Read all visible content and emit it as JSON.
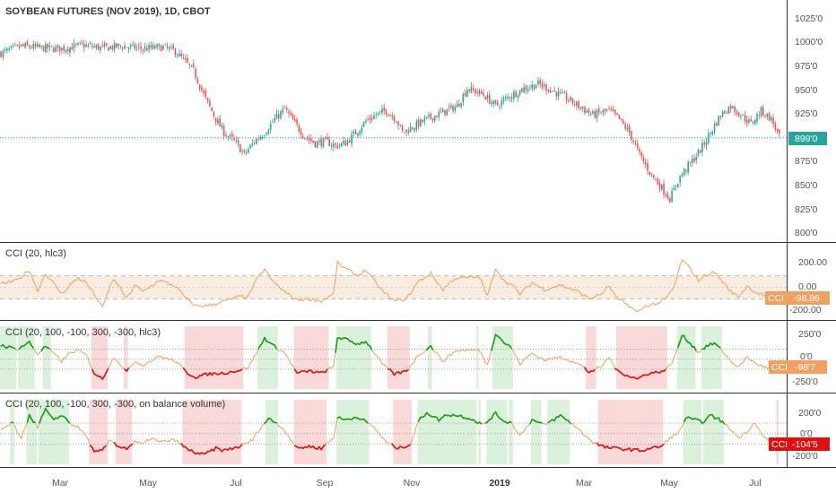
{
  "colors": {
    "up": "#26a69a",
    "down": "#ef5350",
    "cci_line": "#f0a060",
    "cci_band": "#f5e6d3",
    "cci_above": "#1a9b1a",
    "cci_below": "#e01010",
    "cci_above_bg": "#d7efd7",
    "cci_below_bg": "#f8d5d5",
    "last_price": "#26a69a",
    "tag_orange": "#f0a060",
    "tag_red": "#e01010",
    "grid_dots": "#9aa0a6"
  },
  "chart_data": [
    {
      "type": "candlestick",
      "title": "SOYBEAN FUTURES (NOV 2019), 1D, CBOT",
      "y_ticks": [
        "1025'0",
        "1000'0",
        "975'0",
        "950'0",
        "925'0",
        "900'0",
        "875'0",
        "850'0",
        "825'0",
        "800'0"
      ],
      "ylim": [
        793,
        1035
      ],
      "last_price_label": "899'0",
      "last_price": 899,
      "x_labels": [
        "Mar",
        "May",
        "Jul",
        "Sep",
        "Nov",
        "2019",
        "Mar",
        "May",
        "Jul"
      ],
      "close_path": [
        [
          0,
          995
        ],
        [
          10,
          1003
        ],
        [
          20,
          1001
        ],
        [
          30,
          1000
        ],
        [
          40,
          1004
        ],
        [
          50,
          1001
        ],
        [
          60,
          1003
        ],
        [
          70,
          1000
        ],
        [
          80,
          1002
        ],
        [
          86,
          997
        ],
        [
          95,
          975
        ],
        [
          100,
          948
        ],
        [
          106,
          920
        ],
        [
          110,
          905
        ],
        [
          116,
          893
        ],
        [
          120,
          880
        ],
        [
          125,
          895
        ],
        [
          130,
          905
        ],
        [
          135,
          920
        ],
        [
          140,
          932
        ],
        [
          145,
          915
        ],
        [
          150,
          900
        ],
        [
          155,
          893
        ],
        [
          160,
          895
        ],
        [
          165,
          890
        ],
        [
          170,
          893
        ],
        [
          175,
          905
        ],
        [
          180,
          918
        ],
        [
          185,
          925
        ],
        [
          190,
          930
        ],
        [
          195,
          920
        ],
        [
          198,
          905
        ],
        [
          202,
          910
        ],
        [
          210,
          920
        ],
        [
          218,
          928
        ],
        [
          225,
          935
        ],
        [
          230,
          955
        ],
        [
          238,
          948
        ],
        [
          244,
          935
        ],
        [
          250,
          945
        ],
        [
          258,
          955
        ],
        [
          265,
          960
        ],
        [
          270,
          955
        ],
        [
          278,
          945
        ],
        [
          285,
          935
        ],
        [
          292,
          925
        ],
        [
          300,
          930
        ],
        [
          305,
          920
        ],
        [
          310,
          905
        ],
        [
          315,
          880
        ],
        [
          320,
          860
        ],
        [
          325,
          845
        ],
        [
          330,
          830
        ],
        [
          335,
          855
        ],
        [
          340,
          870
        ],
        [
          345,
          885
        ],
        [
          350,
          905
        ],
        [
          355,
          925
        ],
        [
          360,
          935
        ],
        [
          365,
          925
        ],
        [
          370,
          915
        ],
        [
          375,
          930
        ],
        [
          380,
          920
        ],
        [
          384,
          900
        ]
      ],
      "n_bars": 385
    },
    {
      "type": "line",
      "title": "CCI (20, hlc3)",
      "y_ticks": [
        "200.00",
        "0.00",
        "-200.00"
      ],
      "ylim": [
        -260,
        330
      ],
      "band": [
        -100,
        100
      ],
      "last_value_label": "-98.86",
      "last_value": -98.86,
      "path": [
        [
          0,
          30
        ],
        [
          8,
          60
        ],
        [
          14,
          150
        ],
        [
          18,
          -30
        ],
        [
          22,
          120
        ],
        [
          30,
          -60
        ],
        [
          34,
          20
        ],
        [
          38,
          80
        ],
        [
          42,
          40
        ],
        [
          46,
          -60
        ],
        [
          50,
          -180
        ],
        [
          54,
          20
        ],
        [
          56,
          70
        ],
        [
          62,
          -100
        ],
        [
          66,
          20
        ],
        [
          70,
          -40
        ],
        [
          78,
          60
        ],
        [
          86,
          10
        ],
        [
          92,
          -110
        ],
        [
          96,
          -160
        ],
        [
          102,
          -160
        ],
        [
          110,
          -120
        ],
        [
          118,
          -80
        ],
        [
          122,
          -80
        ],
        [
          126,
          60
        ],
        [
          130,
          160
        ],
        [
          134,
          50
        ],
        [
          140,
          -40
        ],
        [
          146,
          -110
        ],
        [
          152,
          -100
        ],
        [
          158,
          -120
        ],
        [
          164,
          -60
        ],
        [
          166,
          210
        ],
        [
          170,
          160
        ],
        [
          176,
          100
        ],
        [
          180,
          150
        ],
        [
          184,
          60
        ],
        [
          188,
          -30
        ],
        [
          194,
          -120
        ],
        [
          200,
          -100
        ],
        [
          206,
          50
        ],
        [
          212,
          120
        ],
        [
          218,
          -20
        ],
        [
          224,
          80
        ],
        [
          228,
          80
        ],
        [
          236,
          90
        ],
        [
          240,
          -80
        ],
        [
          244,
          170
        ],
        [
          248,
          60
        ],
        [
          252,
          20
        ],
        [
          256,
          -60
        ],
        [
          262,
          40
        ],
        [
          268,
          -20
        ],
        [
          276,
          20
        ],
        [
          282,
          -20
        ],
        [
          286,
          -50
        ],
        [
          290,
          -100
        ],
        [
          296,
          -60
        ],
        [
          300,
          10
        ],
        [
          304,
          -100
        ],
        [
          310,
          -160
        ],
        [
          314,
          -220
        ],
        [
          318,
          -160
        ],
        [
          324,
          -140
        ],
        [
          328,
          -100
        ],
        [
          332,
          0
        ],
        [
          336,
          240
        ],
        [
          340,
          160
        ],
        [
          344,
          60
        ],
        [
          348,
          110
        ],
        [
          352,
          130
        ],
        [
          356,
          50
        ],
        [
          360,
          -40
        ],
        [
          364,
          -80
        ],
        [
          368,
          10
        ],
        [
          372,
          -40
        ],
        [
          378,
          -80
        ],
        [
          384,
          -99
        ]
      ]
    },
    {
      "type": "line",
      "title": "CCI (20, 100, -100, 300, -300, hlc3)",
      "y_ticks": [
        "250'0",
        "0'0",
        "-250'0"
      ],
      "ylim": [
        -300,
        330
      ],
      "levels": [
        100,
        -100
      ],
      "last_value_label": "-98'7",
      "last_value": -98.7,
      "path": [
        [
          0,
          140
        ],
        [
          8,
          100
        ],
        [
          14,
          170
        ],
        [
          18,
          50
        ],
        [
          22,
          130
        ],
        [
          30,
          -20
        ],
        [
          34,
          60
        ],
        [
          38,
          90
        ],
        [
          42,
          40
        ],
        [
          46,
          -140
        ],
        [
          50,
          -200
        ],
        [
          54,
          -40
        ],
        [
          56,
          20
        ],
        [
          62,
          -130
        ],
        [
          66,
          -20
        ],
        [
          70,
          -60
        ],
        [
          78,
          30
        ],
        [
          86,
          -20
        ],
        [
          92,
          -140
        ],
        [
          96,
          -180
        ],
        [
          102,
          -150
        ],
        [
          110,
          -140
        ],
        [
          118,
          -110
        ],
        [
          122,
          -80
        ],
        [
          126,
          60
        ],
        [
          130,
          210
        ],
        [
          134,
          140
        ],
        [
          140,
          60
        ],
        [
          146,
          -140
        ],
        [
          152,
          -120
        ],
        [
          158,
          -140
        ],
        [
          164,
          -80
        ],
        [
          166,
          220
        ],
        [
          170,
          200
        ],
        [
          176,
          150
        ],
        [
          180,
          180
        ],
        [
          184,
          70
        ],
        [
          188,
          -50
        ],
        [
          194,
          -150
        ],
        [
          200,
          -120
        ],
        [
          206,
          40
        ],
        [
          212,
          130
        ],
        [
          218,
          -20
        ],
        [
          224,
          80
        ],
        [
          228,
          90
        ],
        [
          236,
          90
        ],
        [
          240,
          -60
        ],
        [
          244,
          260
        ],
        [
          248,
          170
        ],
        [
          252,
          110
        ],
        [
          256,
          -50
        ],
        [
          262,
          60
        ],
        [
          268,
          -10
        ],
        [
          276,
          20
        ],
        [
          282,
          -20
        ],
        [
          286,
          -60
        ],
        [
          290,
          -130
        ],
        [
          296,
          -80
        ],
        [
          300,
          20
        ],
        [
          304,
          -120
        ],
        [
          310,
          -170
        ],
        [
          314,
          -200
        ],
        [
          318,
          -150
        ],
        [
          324,
          -130
        ],
        [
          328,
          -110
        ],
        [
          332,
          0
        ],
        [
          336,
          240
        ],
        [
          340,
          160
        ],
        [
          344,
          70
        ],
        [
          348,
          130
        ],
        [
          352,
          160
        ],
        [
          356,
          80
        ],
        [
          360,
          -20
        ],
        [
          364,
          -80
        ],
        [
          368,
          20
        ],
        [
          372,
          -40
        ],
        [
          378,
          -90
        ],
        [
          384,
          -99
        ]
      ]
    },
    {
      "type": "line",
      "title": "CCI (20, 100, -100, 300, -300, on balance volume)",
      "y_ticks": [
        "200'0",
        "0'0",
        "-200'0"
      ],
      "ylim": [
        -290,
        320
      ],
      "levels": [
        100,
        -100
      ],
      "last_value_label": "-104'5",
      "last_value": -104.5,
      "path": [
        [
          0,
          40
        ],
        [
          6,
          100
        ],
        [
          10,
          -60
        ],
        [
          14,
          180
        ],
        [
          18,
          60
        ],
        [
          22,
          230
        ],
        [
          26,
          120
        ],
        [
          30,
          180
        ],
        [
          34,
          100
        ],
        [
          38,
          60
        ],
        [
          42,
          -20
        ],
        [
          46,
          -180
        ],
        [
          50,
          -160
        ],
        [
          54,
          -60
        ],
        [
          58,
          -120
        ],
        [
          62,
          -140
        ],
        [
          66,
          -80
        ],
        [
          70,
          -100
        ],
        [
          74,
          -40
        ],
        [
          78,
          -80
        ],
        [
          86,
          -60
        ],
        [
          92,
          -150
        ],
        [
          96,
          -180
        ],
        [
          100,
          -200
        ],
        [
          106,
          -140
        ],
        [
          110,
          -160
        ],
        [
          118,
          -120
        ],
        [
          124,
          -60
        ],
        [
          128,
          60
        ],
        [
          132,
          140
        ],
        [
          136,
          100
        ],
        [
          140,
          30
        ],
        [
          146,
          -140
        ],
        [
          152,
          -120
        ],
        [
          158,
          -140
        ],
        [
          164,
          -40
        ],
        [
          166,
          150
        ],
        [
          170,
          130
        ],
        [
          176,
          160
        ],
        [
          180,
          110
        ],
        [
          184,
          60
        ],
        [
          190,
          -80
        ],
        [
          196,
          -140
        ],
        [
          202,
          -100
        ],
        [
          206,
          120
        ],
        [
          210,
          200
        ],
        [
          216,
          130
        ],
        [
          220,
          180
        ],
        [
          226,
          170
        ],
        [
          232,
          140
        ],
        [
          238,
          80
        ],
        [
          244,
          190
        ],
        [
          248,
          120
        ],
        [
          252,
          100
        ],
        [
          256,
          -20
        ],
        [
          262,
          130
        ],
        [
          268,
          80
        ],
        [
          276,
          170
        ],
        [
          282,
          90
        ],
        [
          286,
          20
        ],
        [
          292,
          -80
        ],
        [
          298,
          -130
        ],
        [
          304,
          -140
        ],
        [
          310,
          -150
        ],
        [
          316,
          -160
        ],
        [
          320,
          -140
        ],
        [
          326,
          -120
        ],
        [
          330,
          -40
        ],
        [
          334,
          0
        ],
        [
          338,
          150
        ],
        [
          342,
          130
        ],
        [
          346,
          110
        ],
        [
          350,
          170
        ],
        [
          354,
          140
        ],
        [
          360,
          40
        ],
        [
          364,
          -40
        ],
        [
          368,
          20
        ],
        [
          372,
          110
        ],
        [
          376,
          -30
        ],
        [
          380,
          -80
        ],
        [
          384,
          -104
        ]
      ]
    }
  ]
}
